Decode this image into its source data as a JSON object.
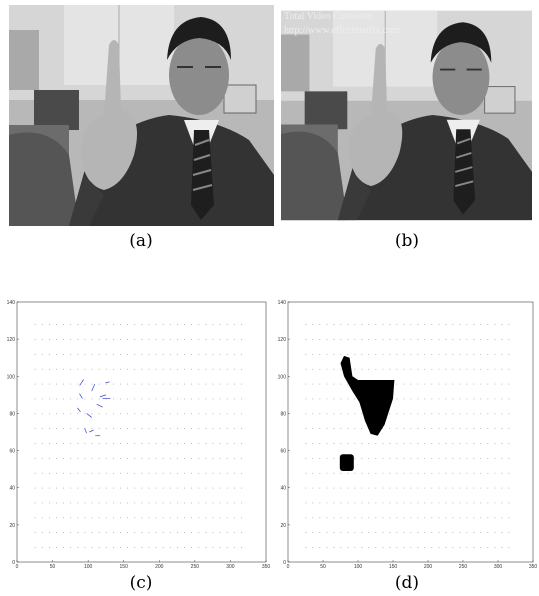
{
  "figure": {
    "panels": [
      {
        "caption": "(a)"
      },
      {
        "caption": "(b)",
        "watermark": [
          "Total Video Converter",
          "http://www.effectmatrix.com"
        ]
      },
      {
        "caption": "(c)",
        "plot": {
          "xlim": [
            0,
            350
          ],
          "ylim": [
            0,
            140
          ],
          "xticks": [
            0,
            50,
            100,
            150,
            200,
            250,
            300,
            350
          ],
          "yticks": [
            0,
            20,
            40,
            60,
            80,
            100,
            120,
            140
          ]
        }
      },
      {
        "caption": "(d)",
        "plot": {
          "xlim": [
            0,
            350
          ],
          "ylim": [
            0,
            140
          ],
          "xticks": [
            0,
            50,
            100,
            150,
            200,
            250,
            300,
            350
          ],
          "yticks": [
            0,
            20,
            40,
            60,
            80,
            100,
            120,
            140
          ]
        }
      }
    ]
  }
}
